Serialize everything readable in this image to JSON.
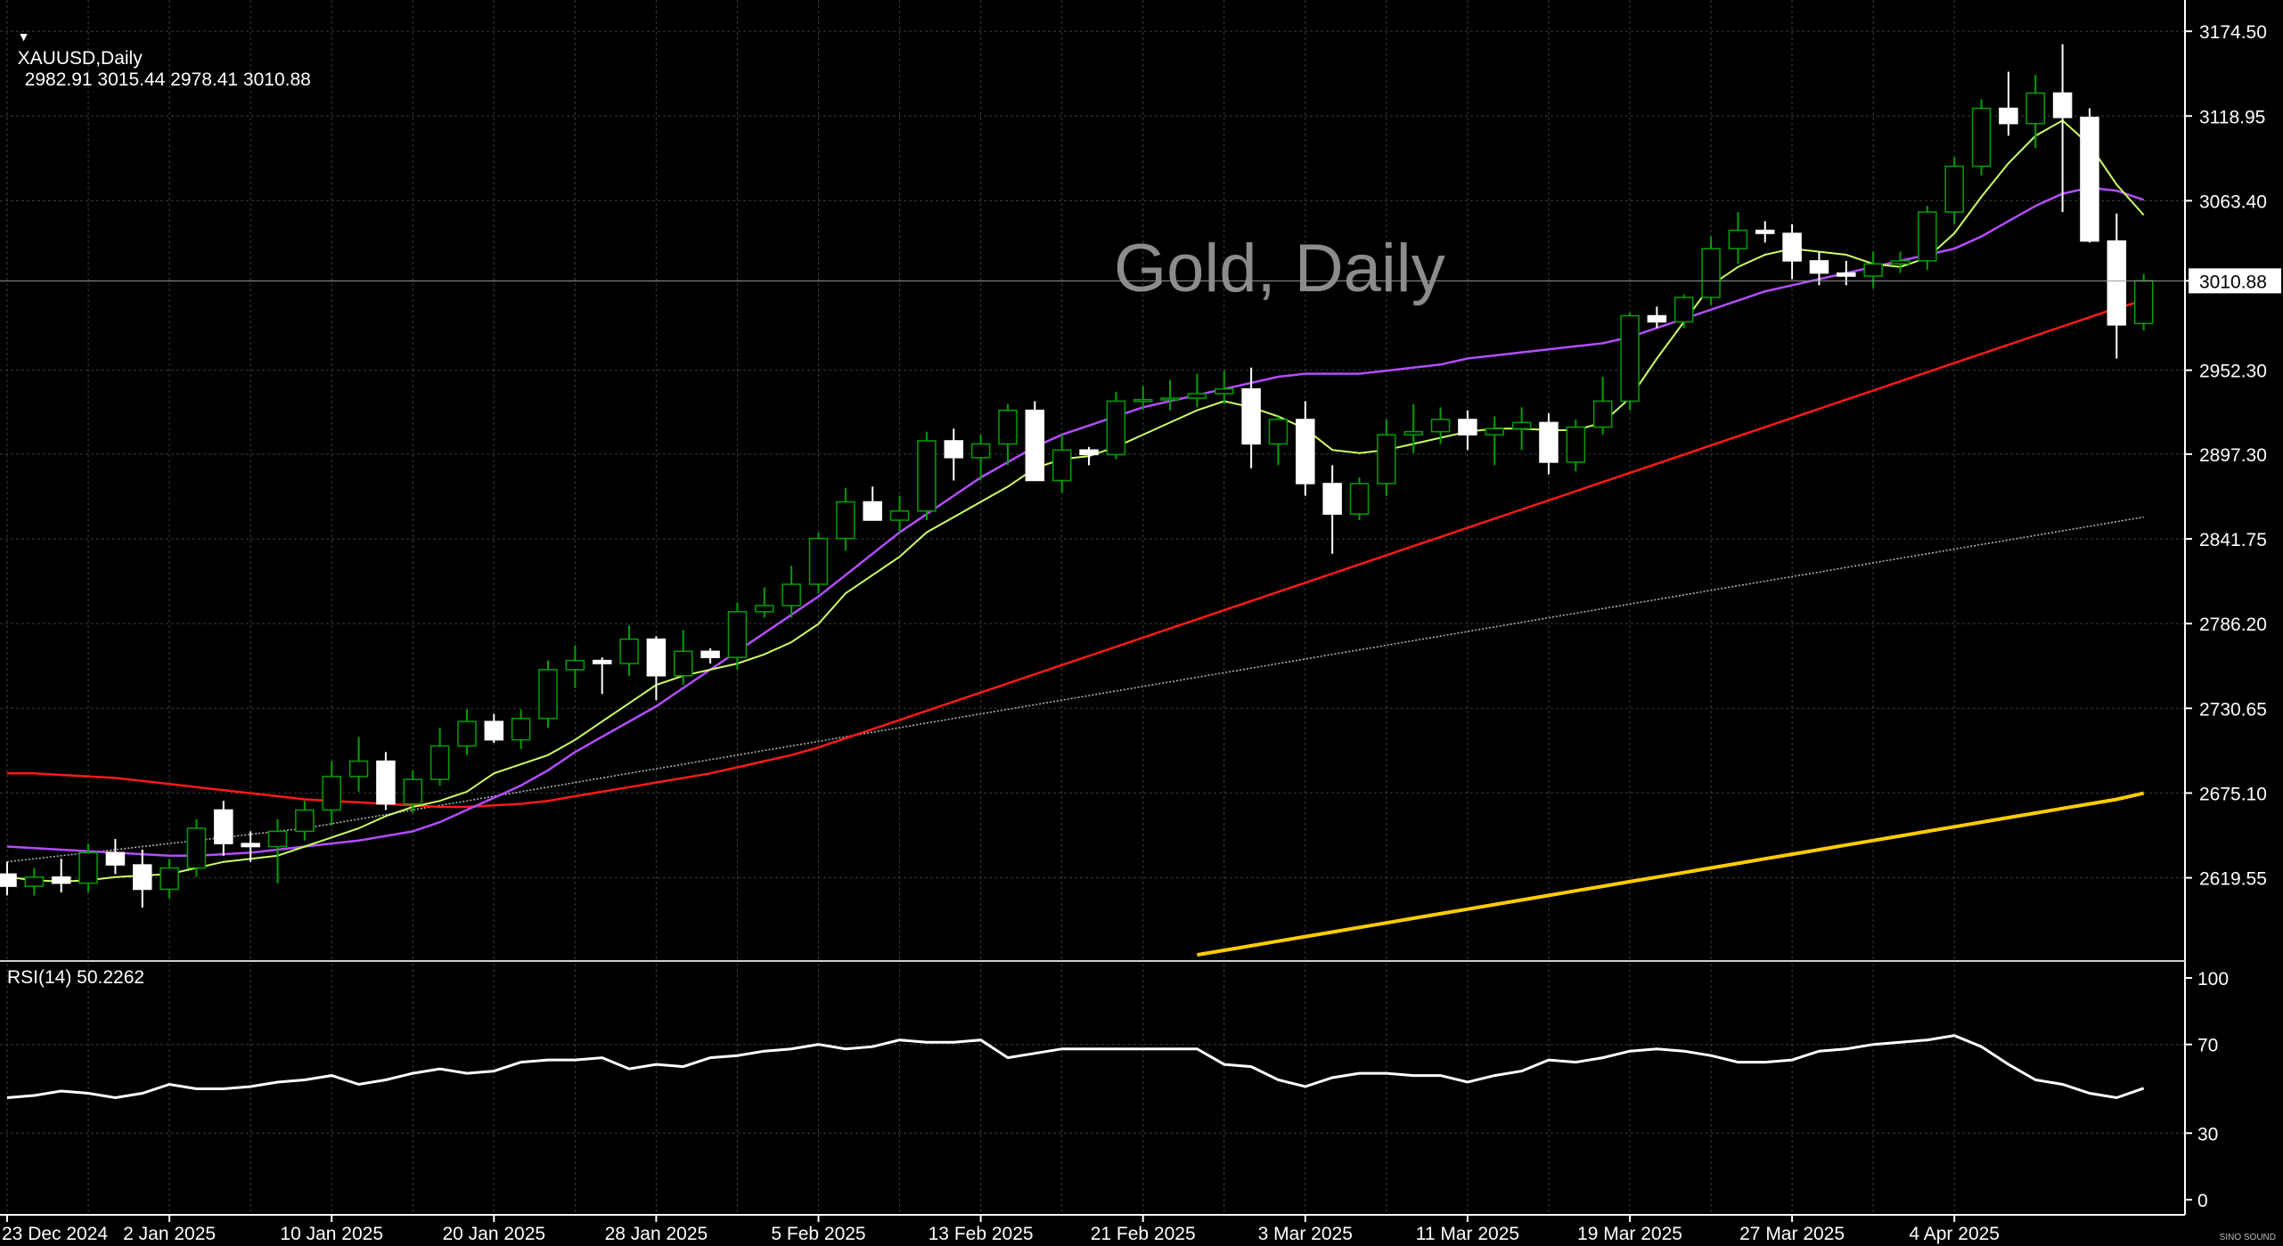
{
  "header": {
    "symbol": "XAUUSD,Daily",
    "ohlc": "2982.91 3015.44 2978.41 3010.88",
    "collapse_icon": "triangle-down-icon"
  },
  "watermark": "Gold, Daily",
  "rsi_label": "RSI(14) 50.2262",
  "logo_text": "SINO SOUND",
  "colors": {
    "background": "#000000",
    "grid": "#3a3a3a",
    "bull_candle": "#00a000",
    "bear_candle": "#ffffff",
    "ma_fast": "#ccff66",
    "ma_mid": "#b34dff",
    "ma_slow": "#ff1a1a",
    "ma_long": "#bbbbbb",
    "ma_200": "#ffcc00",
    "rsi_line": "#ffffff",
    "axis_text": "#ffffff"
  },
  "chart_data": [
    {
      "type": "candlestick",
      "title": "XAUUSD,Daily",
      "current_price": 3010.88,
      "ylim": [
        2565,
        3195
      ],
      "y_ticks": [
        "3174.50",
        "3118.95",
        "3063.40",
        "3010.88",
        "2952.30",
        "2897.30",
        "2841.75",
        "2786.20",
        "2730.65",
        "2675.10",
        "2619.55"
      ],
      "y_tick_values": [
        3174.5,
        3118.95,
        3063.4,
        3010.88,
        2952.3,
        2897.3,
        2841.75,
        2786.2,
        2730.65,
        2675.1,
        2619.55
      ],
      "x_labels": [
        "23 Dec 2024",
        "2 Jan 2025",
        "10 Jan 2025",
        "20 Jan 2025",
        "28 Jan 2025",
        "5 Feb 2025",
        "13 Feb 2025",
        "21 Feb 2025",
        "3 Mar 2025",
        "11 Mar 2025",
        "19 Mar 2025",
        "27 Mar 2025",
        "4 Apr 2025"
      ],
      "x_label_index": [
        0,
        6,
        12,
        18,
        24,
        30,
        36,
        42,
        48,
        54,
        60,
        66,
        72
      ],
      "ohlc": [
        [
          2622,
          2630,
          2608,
          2614
        ],
        [
          2614,
          2626,
          2608,
          2620
        ],
        [
          2620,
          2632,
          2610,
          2616
        ],
        [
          2616,
          2642,
          2610,
          2636
        ],
        [
          2636,
          2645,
          2622,
          2628
        ],
        [
          2628,
          2638,
          2600,
          2612
        ],
        [
          2612,
          2632,
          2606,
          2626
        ],
        [
          2626,
          2658,
          2620,
          2652
        ],
        [
          2664,
          2670,
          2634,
          2642
        ],
        [
          2642,
          2650,
          2630,
          2640
        ],
        [
          2640,
          2658,
          2616,
          2650
        ],
        [
          2650,
          2670,
          2644,
          2664
        ],
        [
          2664,
          2696,
          2654,
          2686
        ],
        [
          2686,
          2712,
          2676,
          2696
        ],
        [
          2696,
          2702,
          2664,
          2668
        ],
        [
          2668,
          2690,
          2662,
          2684
        ],
        [
          2684,
          2718,
          2680,
          2706
        ],
        [
          2706,
          2730,
          2700,
          2722
        ],
        [
          2722,
          2727,
          2708,
          2710
        ],
        [
          2710,
          2730,
          2704,
          2724
        ],
        [
          2724,
          2762,
          2718,
          2756
        ],
        [
          2756,
          2772,
          2744,
          2762
        ],
        [
          2762,
          2764,
          2740,
          2760
        ],
        [
          2760,
          2785,
          2752,
          2776
        ],
        [
          2776,
          2778,
          2736,
          2752
        ],
        [
          2752,
          2782,
          2746,
          2768
        ],
        [
          2768,
          2770,
          2760,
          2764
        ],
        [
          2764,
          2800,
          2756,
          2794
        ],
        [
          2794,
          2810,
          2790,
          2798
        ],
        [
          2798,
          2824,
          2790,
          2812
        ],
        [
          2812,
          2846,
          2806,
          2842
        ],
        [
          2842,
          2875,
          2834,
          2866
        ],
        [
          2866,
          2876,
          2856,
          2854
        ],
        [
          2854,
          2870,
          2846,
          2860
        ],
        [
          2860,
          2912,
          2854,
          2906
        ],
        [
          2906,
          2914,
          2880,
          2895
        ],
        [
          2895,
          2910,
          2880,
          2904
        ],
        [
          2904,
          2930,
          2890,
          2926
        ],
        [
          2926,
          2932,
          2880,
          2880
        ],
        [
          2880,
          2910,
          2872,
          2900
        ],
        [
          2900,
          2902,
          2890,
          2897
        ],
        [
          2897,
          2938,
          2894,
          2932
        ],
        [
          2932,
          2942,
          2926,
          2933
        ],
        [
          2933,
          2946,
          2926,
          2934
        ],
        [
          2934,
          2950,
          2928,
          2937
        ],
        [
          2937,
          2952,
          2930,
          2940
        ],
        [
          2940,
          2954,
          2888,
          2904
        ],
        [
          2904,
          2922,
          2890,
          2920
        ],
        [
          2920,
          2932,
          2870,
          2878
        ],
        [
          2878,
          2890,
          2832,
          2858
        ],
        [
          2858,
          2882,
          2854,
          2878
        ],
        [
          2878,
          2920,
          2870,
          2910
        ],
        [
          2910,
          2930,
          2898,
          2912
        ],
        [
          2912,
          2928,
          2904,
          2920
        ],
        [
          2920,
          2926,
          2900,
          2910
        ],
        [
          2910,
          2922,
          2890,
          2914
        ],
        [
          2914,
          2928,
          2900,
          2918
        ],
        [
          2918,
          2924,
          2884,
          2892
        ],
        [
          2892,
          2920,
          2886,
          2915
        ],
        [
          2915,
          2948,
          2910,
          2932
        ],
        [
          2932,
          2990,
          2926,
          2988
        ],
        [
          2988,
          2994,
          2980,
          2984
        ],
        [
          2984,
          3002,
          2980,
          3000
        ],
        [
          3000,
          3040,
          2995,
          3032
        ],
        [
          3032,
          3056,
          3022,
          3044
        ],
        [
          3044,
          3050,
          3036,
          3042
        ],
        [
          3042,
          3048,
          3012,
          3024
        ],
        [
          3024,
          3030,
          3008,
          3016
        ],
        [
          3016,
          3024,
          3008,
          3014
        ],
        [
          3014,
          3030,
          3006,
          3022
        ],
        [
          3022,
          3030,
          3016,
          3024
        ],
        [
          3024,
          3060,
          3018,
          3056
        ],
        [
          3056,
          3092,
          3048,
          3086
        ],
        [
          3086,
          3130,
          3080,
          3124
        ],
        [
          3124,
          3148,
          3106,
          3114
        ],
        [
          3114,
          3146,
          3098,
          3134
        ],
        [
          3134,
          3166,
          3056,
          3118
        ],
        [
          3118,
          3124,
          3036,
          3037
        ],
        [
          3037,
          3055,
          2960,
          2982
        ],
        [
          2982.91,
          3015.44,
          2978.41,
          3010.88
        ]
      ],
      "ma_fast": [
        2620,
        2618,
        2617,
        2618,
        2620,
        2621,
        2622,
        2626,
        2630,
        2632,
        2634,
        2640,
        2646,
        2652,
        2660,
        2666,
        2670,
        2676,
        2688,
        2694,
        2700,
        2710,
        2722,
        2734,
        2746,
        2752,
        2756,
        2760,
        2766,
        2774,
        2786,
        2806,
        2818,
        2830,
        2846,
        2856,
        2866,
        2876,
        2888,
        2894,
        2896,
        2902,
        2910,
        2918,
        2926,
        2932,
        2928,
        2922,
        2914,
        2900,
        2898,
        2900,
        2904,
        2908,
        2912,
        2914,
        2914,
        2913,
        2913,
        2918,
        2934,
        2960,
        2984,
        3008,
        3020,
        3028,
        3032,
        3030,
        3028,
        3022,
        3020,
        3026,
        3042,
        3066,
        3088,
        3106,
        3116,
        3100,
        3074,
        3054
      ],
      "ma_mid": [
        2640,
        2639,
        2638,
        2637,
        2636,
        2635,
        2634,
        2634,
        2635,
        2636,
        2638,
        2640,
        2642,
        2644,
        2647,
        2650,
        2656,
        2664,
        2672,
        2680,
        2690,
        2702,
        2712,
        2722,
        2732,
        2744,
        2756,
        2768,
        2780,
        2792,
        2804,
        2818,
        2832,
        2846,
        2858,
        2870,
        2882,
        2892,
        2902,
        2910,
        2916,
        2922,
        2928,
        2932,
        2936,
        2940,
        2944,
        2948,
        2950,
        2950,
        2950,
        2952,
        2954,
        2956,
        2960,
        2962,
        2964,
        2966,
        2968,
        2970,
        2974,
        2980,
        2986,
        2992,
        2998,
        3004,
        3008,
        3012,
        3016,
        3020,
        3024,
        3028,
        3032,
        3040,
        3050,
        3060,
        3068,
        3072,
        3070,
        3064
      ],
      "ma_slow": [
        2688,
        2688,
        2687,
        2686,
        2685,
        2683,
        2681,
        2679,
        2677,
        2675,
        2673,
        2671,
        2670,
        2669,
        2668,
        2667,
        2666,
        2666,
        2667,
        2668,
        2670,
        2673,
        2676,
        2679,
        2682,
        2685,
        2688,
        2692,
        2696,
        2700,
        2705,
        2711,
        2717,
        2723,
        2729,
        2735,
        2741,
        2747,
        2753,
        2759,
        2765,
        2771,
        2777,
        2783,
        2789,
        2795,
        2801,
        2807,
        2813,
        2819,
        2825,
        2831,
        2837,
        2843,
        2849,
        2855,
        2861,
        2867,
        2873,
        2879,
        2885,
        2891,
        2897,
        2903,
        2909,
        2915,
        2921,
        2927,
        2933,
        2939,
        2945,
        2951,
        2957,
        2963,
        2969,
        2975,
        2981,
        2987,
        2993,
        2998
      ],
      "ma_long": [
        2630,
        2632,
        2634,
        2636,
        2638,
        2640,
        2642,
        2644,
        2646,
        2648,
        2650,
        2652,
        2655,
        2658,
        2661,
        2664,
        2667,
        2670,
        2673,
        2676,
        2679,
        2682,
        2685,
        2688,
        2691,
        2694,
        2697,
        2700,
        2703,
        2706,
        2709,
        2712,
        2715,
        2718,
        2721,
        2724,
        2727,
        2730,
        2733,
        2736,
        2739,
        2742,
        2745,
        2748,
        2751,
        2754,
        2757,
        2760,
        2763,
        2766,
        2769,
        2772,
        2775,
        2778,
        2781,
        2784,
        2787,
        2790,
        2793,
        2796,
        2799,
        2802,
        2805,
        2808,
        2811,
        2814,
        2817,
        2820,
        2823,
        2826,
        2829,
        2832,
        2835,
        2838,
        2841,
        2844,
        2847,
        2850,
        2853,
        2856
      ],
      "ma_200": [
        null,
        null,
        null,
        null,
        null,
        null,
        null,
        null,
        null,
        null,
        null,
        null,
        null,
        null,
        null,
        null,
        null,
        null,
        null,
        null,
        null,
        null,
        null,
        null,
        null,
        null,
        null,
        null,
        null,
        null,
        null,
        null,
        null,
        null,
        null,
        null,
        null,
        null,
        null,
        null,
        null,
        null,
        null,
        null,
        2569,
        2572,
        2575,
        2578,
        2581,
        2584,
        2587,
        2590,
        2593,
        2596,
        2599,
        2602,
        2605,
        2608,
        2611,
        2614,
        2617,
        2620,
        2623,
        2626,
        2629,
        2632,
        2635,
        2638,
        2641,
        2644,
        2647,
        2650,
        2653,
        2656,
        2659,
        2662,
        2665,
        2668,
        2671,
        2675
      ]
    },
    {
      "type": "line",
      "title": "RSI(14) 50.2262",
      "ylim": [
        0,
        100
      ],
      "y_ticks": [
        "100",
        "70",
        "30",
        "0"
      ],
      "y_tick_values": [
        100,
        70,
        30,
        0
      ],
      "values": [
        46,
        47,
        49,
        48,
        46,
        48,
        52,
        50,
        50,
        51,
        53,
        54,
        56,
        52,
        54,
        57,
        59,
        57,
        58,
        62,
        63,
        63,
        64,
        59,
        61,
        60,
        64,
        65,
        67,
        68,
        70,
        68,
        69,
        72,
        71,
        71,
        72,
        64,
        66,
        68,
        68,
        68,
        68,
        68,
        68,
        61,
        60,
        54,
        51,
        55,
        57,
        57,
        56,
        56,
        53,
        56,
        58,
        63,
        62,
        64,
        67,
        68,
        67,
        65,
        62,
        62,
        63,
        67,
        68,
        70,
        71,
        72,
        74,
        69,
        61,
        54,
        52,
        48,
        46,
        50.23
      ]
    }
  ]
}
